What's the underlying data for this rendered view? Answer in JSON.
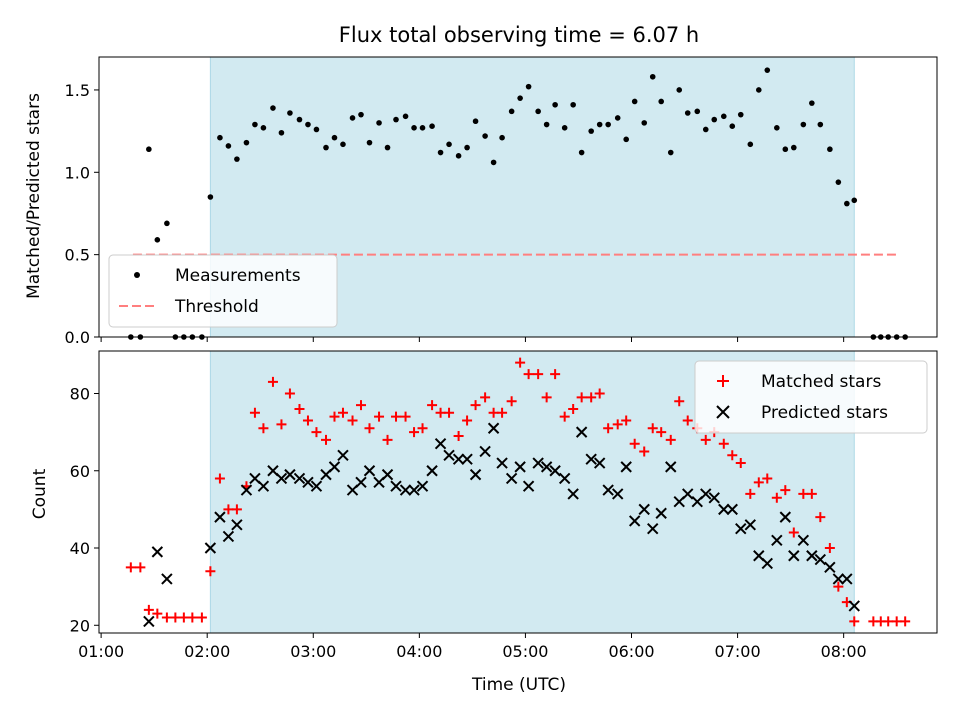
{
  "chart_data": [
    {
      "type": "scatter",
      "title": "Flux total observing time = 6.07 h",
      "ylabel": "Matched/Predicted stars",
      "xlabel": "",
      "xlim": [
        0.98,
        8.88
      ],
      "ylim": [
        0,
        1.7
      ],
      "x_tick_values": [
        1,
        2,
        3,
        4,
        5,
        6,
        7,
        8
      ],
      "y_ticks": [
        "0.0",
        "0.5",
        "1.0",
        "1.5"
      ],
      "y_tick_values": [
        0,
        0.5,
        1.0,
        1.5
      ],
      "shaded_span": [
        2.03,
        8.1
      ],
      "shade_color": "#add8e6",
      "legend_position": "lower-left",
      "threshold": {
        "name": "Threshold",
        "value": 0.5,
        "x_range": [
          1.3,
          8.5
        ],
        "color": "#ff7f7f"
      },
      "series": [
        {
          "name": "Measurements",
          "color": "#000000",
          "points": [
            [
              1.28,
              0
            ],
            [
              1.37,
              0
            ],
            [
              1.45,
              1.14
            ],
            [
              1.53,
              0.59
            ],
            [
              1.62,
              0.69
            ],
            [
              1.7,
              0
            ],
            [
              1.78,
              0
            ],
            [
              1.86,
              0
            ],
            [
              1.95,
              0
            ],
            [
              2.03,
              0.85
            ],
            [
              2.12,
              1.21
            ],
            [
              2.2,
              1.16
            ],
            [
              2.28,
              1.08
            ],
            [
              2.37,
              1.18
            ],
            [
              2.45,
              1.29
            ],
            [
              2.53,
              1.27
            ],
            [
              2.62,
              1.39
            ],
            [
              2.7,
              1.24
            ],
            [
              2.78,
              1.36
            ],
            [
              2.87,
              1.32
            ],
            [
              2.95,
              1.29
            ],
            [
              3.03,
              1.26
            ],
            [
              3.12,
              1.15
            ],
            [
              3.2,
              1.21
            ],
            [
              3.28,
              1.17
            ],
            [
              3.37,
              1.33
            ],
            [
              3.45,
              1.35
            ],
            [
              3.53,
              1.18
            ],
            [
              3.62,
              1.3
            ],
            [
              3.7,
              1.15
            ],
            [
              3.78,
              1.32
            ],
            [
              3.87,
              1.34
            ],
            [
              3.95,
              1.27
            ],
            [
              4.03,
              1.27
            ],
            [
              4.12,
              1.28
            ],
            [
              4.2,
              1.12
            ],
            [
              4.28,
              1.17
            ],
            [
              4.37,
              1.1
            ],
            [
              4.45,
              1.15
            ],
            [
              4.53,
              1.31
            ],
            [
              4.62,
              1.22
            ],
            [
              4.7,
              1.06
            ],
            [
              4.78,
              1.21
            ],
            [
              4.87,
              1.37
            ],
            [
              4.95,
              1.45
            ],
            [
              5.03,
              1.52
            ],
            [
              5.12,
              1.37
            ],
            [
              5.2,
              1.29
            ],
            [
              5.28,
              1.41
            ],
            [
              5.37,
              1.27
            ],
            [
              5.45,
              1.41
            ],
            [
              5.53,
              1.12
            ],
            [
              5.62,
              1.25
            ],
            [
              5.7,
              1.29
            ],
            [
              5.78,
              1.29
            ],
            [
              5.87,
              1.33
            ],
            [
              5.95,
              1.2
            ],
            [
              6.03,
              1.43
            ],
            [
              6.12,
              1.3
            ],
            [
              6.2,
              1.58
            ],
            [
              6.28,
              1.43
            ],
            [
              6.37,
              1.12
            ],
            [
              6.45,
              1.5
            ],
            [
              6.53,
              1.36
            ],
            [
              6.62,
              1.37
            ],
            [
              6.7,
              1.26
            ],
            [
              6.78,
              1.32
            ],
            [
              6.87,
              1.34
            ],
            [
              6.95,
              1.28
            ],
            [
              7.03,
              1.35
            ],
            [
              7.12,
              1.17
            ],
            [
              7.2,
              1.5
            ],
            [
              7.28,
              1.62
            ],
            [
              7.37,
              1.27
            ],
            [
              7.45,
              1.14
            ],
            [
              7.53,
              1.15
            ],
            [
              7.62,
              1.29
            ],
            [
              7.7,
              1.42
            ],
            [
              7.78,
              1.29
            ],
            [
              7.87,
              1.14
            ],
            [
              7.95,
              0.94
            ],
            [
              8.03,
              0.81
            ],
            [
              8.1,
              0.83
            ],
            [
              8.28,
              0
            ],
            [
              8.35,
              0
            ],
            [
              8.42,
              0
            ],
            [
              8.5,
              0
            ],
            [
              8.58,
              0
            ]
          ]
        }
      ]
    },
    {
      "type": "scatter",
      "title": "",
      "xlabel": "Time (UTC)",
      "ylabel": "Count",
      "xlim": [
        0.98,
        8.88
      ],
      "ylim": [
        18,
        91
      ],
      "x_ticks": [
        "01:00",
        "02:00",
        "03:00",
        "04:00",
        "05:00",
        "06:00",
        "07:00",
        "08:00"
      ],
      "x_tick_values": [
        1,
        2,
        3,
        4,
        5,
        6,
        7,
        8
      ],
      "y_ticks": [
        "20",
        "40",
        "60",
        "80"
      ],
      "y_tick_values": [
        20,
        40,
        60,
        80
      ],
      "shaded_span": [
        2.03,
        8.1
      ],
      "shade_color": "#add8e6",
      "legend_position": "upper-right",
      "series": [
        {
          "name": "Matched stars",
          "marker": "plus",
          "color": "#ff0000",
          "points": [
            [
              1.28,
              35
            ],
            [
              1.37,
              35
            ],
            [
              1.45,
              24
            ],
            [
              1.53,
              23
            ],
            [
              1.62,
              22
            ],
            [
              1.7,
              22
            ],
            [
              1.78,
              22
            ],
            [
              1.86,
              22
            ],
            [
              1.95,
              22
            ],
            [
              2.03,
              34
            ],
            [
              2.12,
              58
            ],
            [
              2.2,
              50
            ],
            [
              2.28,
              50
            ],
            [
              2.37,
              56
            ],
            [
              2.45,
              75
            ],
            [
              2.53,
              71
            ],
            [
              2.62,
              83
            ],
            [
              2.7,
              72
            ],
            [
              2.78,
              80
            ],
            [
              2.87,
              76
            ],
            [
              2.95,
              73
            ],
            [
              3.03,
              70
            ],
            [
              3.12,
              68
            ],
            [
              3.2,
              74
            ],
            [
              3.28,
              75
            ],
            [
              3.37,
              73
            ],
            [
              3.45,
              77
            ],
            [
              3.53,
              71
            ],
            [
              3.62,
              74
            ],
            [
              3.7,
              68
            ],
            [
              3.78,
              74
            ],
            [
              3.87,
              74
            ],
            [
              3.95,
              70
            ],
            [
              4.03,
              71
            ],
            [
              4.12,
              77
            ],
            [
              4.2,
              75
            ],
            [
              4.28,
              75
            ],
            [
              4.37,
              69
            ],
            [
              4.45,
              73
            ],
            [
              4.53,
              77
            ],
            [
              4.62,
              79
            ],
            [
              4.7,
              75
            ],
            [
              4.78,
              75
            ],
            [
              4.87,
              78
            ],
            [
              4.95,
              88
            ],
            [
              5.03,
              85
            ],
            [
              5.12,
              85
            ],
            [
              5.2,
              79
            ],
            [
              5.28,
              85
            ],
            [
              5.37,
              74
            ],
            [
              5.45,
              76
            ],
            [
              5.53,
              79
            ],
            [
              5.62,
              79
            ],
            [
              5.7,
              80
            ],
            [
              5.78,
              71
            ],
            [
              5.87,
              72
            ],
            [
              5.95,
              73
            ],
            [
              6.03,
              67
            ],
            [
              6.12,
              65
            ],
            [
              6.2,
              71
            ],
            [
              6.28,
              70
            ],
            [
              6.37,
              68
            ],
            [
              6.45,
              78
            ],
            [
              6.53,
              73
            ],
            [
              6.62,
              71
            ],
            [
              6.7,
              68
            ],
            [
              6.78,
              70
            ],
            [
              6.87,
              67
            ],
            [
              6.95,
              64
            ],
            [
              7.03,
              62
            ],
            [
              7.12,
              54
            ],
            [
              7.2,
              57
            ],
            [
              7.28,
              58
            ],
            [
              7.37,
              53
            ],
            [
              7.45,
              55
            ],
            [
              7.53,
              44
            ],
            [
              7.62,
              54
            ],
            [
              7.7,
              54
            ],
            [
              7.78,
              48
            ],
            [
              7.87,
              40
            ],
            [
              7.95,
              30
            ],
            [
              8.03,
              26
            ],
            [
              8.1,
              21
            ],
            [
              8.28,
              21
            ],
            [
              8.35,
              21
            ],
            [
              8.42,
              21
            ],
            [
              8.5,
              21
            ],
            [
              8.58,
              21
            ]
          ]
        },
        {
          "name": "Predicted stars",
          "marker": "x",
          "color": "#000000",
          "points": [
            [
              1.45,
              21
            ],
            [
              1.53,
              39
            ],
            [
              1.62,
              32
            ],
            [
              2.03,
              40
            ],
            [
              2.12,
              48
            ],
            [
              2.2,
              43
            ],
            [
              2.28,
              46
            ],
            [
              2.37,
              55
            ],
            [
              2.45,
              58
            ],
            [
              2.53,
              56
            ],
            [
              2.62,
              60
            ],
            [
              2.7,
              58
            ],
            [
              2.78,
              59
            ],
            [
              2.87,
              58
            ],
            [
              2.95,
              57
            ],
            [
              3.03,
              56
            ],
            [
              3.12,
              59
            ],
            [
              3.2,
              61
            ],
            [
              3.28,
              64
            ],
            [
              3.37,
              55
            ],
            [
              3.45,
              57
            ],
            [
              3.53,
              60
            ],
            [
              3.62,
              57
            ],
            [
              3.7,
              59
            ],
            [
              3.78,
              56
            ],
            [
              3.87,
              55
            ],
            [
              3.95,
              55
            ],
            [
              4.03,
              56
            ],
            [
              4.12,
              60
            ],
            [
              4.2,
              67
            ],
            [
              4.28,
              64
            ],
            [
              4.37,
              63
            ],
            [
              4.45,
              63
            ],
            [
              4.53,
              59
            ],
            [
              4.62,
              65
            ],
            [
              4.7,
              71
            ],
            [
              4.78,
              62
            ],
            [
              4.87,
              58
            ],
            [
              4.95,
              61
            ],
            [
              5.03,
              56
            ],
            [
              5.12,
              62
            ],
            [
              5.2,
              61
            ],
            [
              5.28,
              60
            ],
            [
              5.37,
              58
            ],
            [
              5.45,
              54
            ],
            [
              5.53,
              70
            ],
            [
              5.62,
              63
            ],
            [
              5.7,
              62
            ],
            [
              5.78,
              55
            ],
            [
              5.87,
              54
            ],
            [
              5.95,
              61
            ],
            [
              6.03,
              47
            ],
            [
              6.12,
              50
            ],
            [
              6.2,
              45
            ],
            [
              6.28,
              49
            ],
            [
              6.37,
              61
            ],
            [
              6.45,
              52
            ],
            [
              6.53,
              54
            ],
            [
              6.62,
              52
            ],
            [
              6.7,
              54
            ],
            [
              6.78,
              53
            ],
            [
              6.87,
              50
            ],
            [
              6.95,
              50
            ],
            [
              7.03,
              45
            ],
            [
              7.12,
              46
            ],
            [
              7.2,
              38
            ],
            [
              7.28,
              36
            ],
            [
              7.37,
              42
            ],
            [
              7.45,
              48
            ],
            [
              7.53,
              38
            ],
            [
              7.62,
              42
            ],
            [
              7.7,
              38
            ],
            [
              7.78,
              37
            ],
            [
              7.87,
              35
            ],
            [
              7.95,
              32
            ],
            [
              8.03,
              32
            ],
            [
              8.1,
              25
            ]
          ]
        }
      ]
    }
  ]
}
